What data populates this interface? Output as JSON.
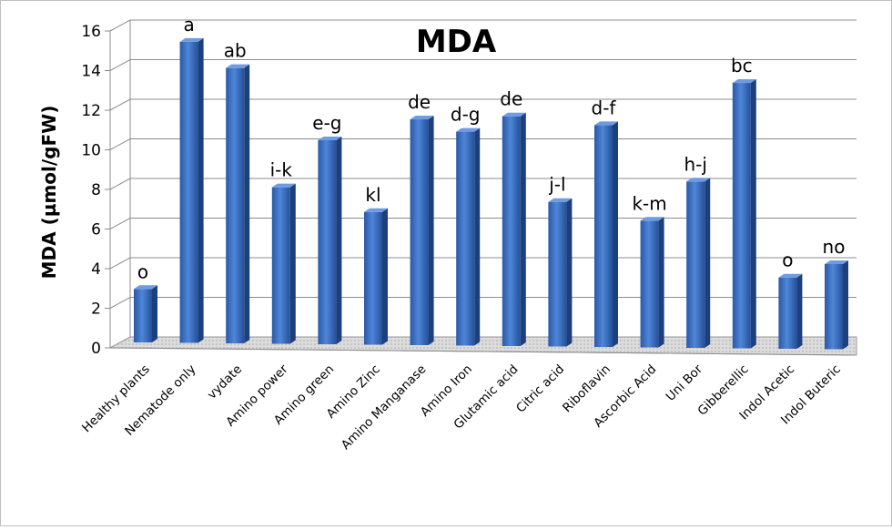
{
  "chart_data": {
    "type": "bar",
    "title": "MDA",
    "xlabel": "",
    "ylabel": "MDA (µmol/gFW)",
    "ylim": [
      0,
      16
    ],
    "yticks": [
      0,
      2,
      4,
      6,
      8,
      10,
      12,
      14,
      16
    ],
    "grid": true,
    "legend": "none",
    "bar_color": "#3a6fc4",
    "categories": [
      "Healthy plants",
      "Nematode only",
      "vydate",
      "Amino power",
      "Amino green",
      "Amino Zinc",
      "Amino Manganase",
      "Amino Iron",
      "Glutamic acid",
      "Citric acid",
      "Riboflavin",
      "Ascorbic Acid",
      "Uni Bor",
      "Gibberellic",
      "Indol Acetic",
      "Indol Buteric"
    ],
    "values": [
      2.7,
      15.2,
      13.9,
      7.9,
      10.3,
      6.7,
      11.4,
      10.8,
      11.6,
      7.3,
      11.2,
      6.4,
      8.4,
      13.4,
      3.6,
      4.3
    ],
    "annotations": [
      "o",
      "a",
      "ab",
      "i-k",
      "e-g",
      "kl",
      "de",
      "d-g",
      "de",
      "j-l",
      "d-f",
      "k-m",
      "h-j",
      "bc",
      "o",
      "no"
    ]
  }
}
